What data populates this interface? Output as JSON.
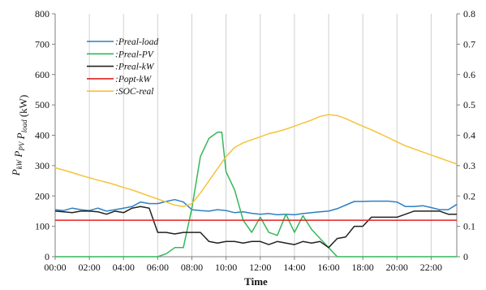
{
  "chart_data": {
    "type": "line",
    "xlabel": "Time",
    "ylabel_parts": [
      {
        "main": "P",
        "sub": "kW"
      },
      {
        "main": "P",
        "sub": "PV"
      },
      {
        "main": "P",
        "sub": "load"
      }
    ],
    "ylabel_unit": "(kW)",
    "ylim": [
      0,
      800
    ],
    "yticks": [
      0,
      100,
      200,
      300,
      400,
      500,
      600,
      700,
      800
    ],
    "y2lim": [
      0,
      0.8
    ],
    "y2ticks": [
      "0",
      "0.1",
      "0.2",
      "0.3",
      "0.4",
      "0.5",
      "0.6",
      "0.7",
      "0.8"
    ],
    "xlim": [
      0,
      23.5
    ],
    "xticks": [
      {
        "x": 0,
        "label": "00:00"
      },
      {
        "x": 2,
        "label": "02:00"
      },
      {
        "x": 4,
        "label": "04:00"
      },
      {
        "x": 6,
        "label": "06:00"
      },
      {
        "x": 8,
        "label": "08:00"
      },
      {
        "x": 10,
        "label": "10:00"
      },
      {
        "x": 12,
        "label": "12:00"
      },
      {
        "x": 14,
        "label": "14:00"
      },
      {
        "x": 16,
        "label": "16:00"
      },
      {
        "x": 18,
        "label": "18:00"
      },
      {
        "x": 20,
        "label": "20:00"
      },
      {
        "x": 22,
        "label": "22:00"
      }
    ],
    "grid": "vertical",
    "legend_position": "top-left",
    "series": [
      {
        "name": ":Preal-load",
        "color": "#2e7fc2",
        "axis": "left",
        "x": [
          0,
          0.5,
          1,
          1.5,
          2,
          2.5,
          3,
          3.5,
          4,
          4.5,
          5,
          5.5,
          6,
          6.5,
          7,
          7.5,
          8,
          8.5,
          9,
          9.5,
          10,
          10.5,
          11,
          11.5,
          12,
          12.5,
          13,
          13.5,
          14,
          14.5,
          15,
          15.5,
          16,
          16.5,
          17,
          17.5,
          18,
          18.5,
          19,
          19.5,
          20,
          20.5,
          21,
          21.5,
          22,
          22.5,
          23,
          23.5
        ],
        "y": [
          155,
          152,
          160,
          155,
          152,
          160,
          150,
          155,
          160,
          165,
          180,
          175,
          175,
          182,
          188,
          180,
          155,
          152,
          150,
          155,
          152,
          145,
          148,
          143,
          140,
          142,
          138,
          140,
          138,
          142,
          145,
          148,
          150,
          158,
          170,
          182,
          182,
          183,
          183,
          183,
          180,
          165,
          165,
          168,
          162,
          155,
          155,
          172
        ]
      },
      {
        "name": ":Preal-PV",
        "color": "#35b75a",
        "axis": "left",
        "x": [
          0,
          0.5,
          1,
          1.5,
          2,
          2.5,
          3,
          3.5,
          4,
          4.5,
          5,
          5.5,
          6,
          6.5,
          7,
          7.5,
          8,
          8.5,
          9,
          9.5,
          9.75,
          10,
          10.5,
          11,
          11.5,
          12,
          12.5,
          13,
          13.5,
          14,
          14.5,
          15,
          15.5,
          16,
          16.5,
          17,
          17.5,
          18,
          18.5,
          19,
          19.5,
          20,
          20.5,
          21,
          21.5,
          22,
          22.5,
          23,
          23.5
        ],
        "y": [
          0,
          0,
          0,
          0,
          0,
          0,
          0,
          0,
          0,
          0,
          0,
          0,
          0,
          10,
          30,
          30,
          160,
          330,
          390,
          410,
          410,
          280,
          220,
          120,
          80,
          130,
          80,
          70,
          140,
          80,
          135,
          90,
          60,
          30,
          0,
          0,
          0,
          0,
          0,
          0,
          0,
          0,
          0,
          0,
          0,
          0,
          0,
          0,
          0
        ]
      },
      {
        "name": ":Preal-kW",
        "color": "#222222",
        "axis": "left",
        "x": [
          0,
          0.5,
          1,
          1.5,
          2,
          2.5,
          3,
          3.5,
          4,
          4.5,
          5,
          5.5,
          6,
          6.5,
          7,
          7.5,
          8,
          8.5,
          9,
          9.5,
          10,
          10.5,
          11,
          11.5,
          12,
          12.5,
          13,
          13.5,
          14,
          14.5,
          15,
          15.5,
          16,
          16.5,
          17,
          17.5,
          18,
          18.5,
          19,
          19.5,
          20,
          20.5,
          21,
          21.5,
          22,
          22.5,
          23,
          23.5
        ],
        "y": [
          150,
          148,
          145,
          150,
          150,
          148,
          140,
          150,
          145,
          160,
          165,
          160,
          80,
          80,
          75,
          80,
          80,
          80,
          50,
          45,
          50,
          50,
          45,
          50,
          50,
          40,
          50,
          45,
          40,
          50,
          45,
          50,
          30,
          60,
          65,
          100,
          100,
          130,
          130,
          130,
          130,
          140,
          150,
          150,
          150,
          150,
          140,
          140
        ]
      },
      {
        "name": ":Popt-kW",
        "color": "#e02020",
        "axis": "left",
        "x": [
          0,
          23.5
        ],
        "y": [
          120,
          120
        ]
      },
      {
        "name": ":SOC-real",
        "color": "#f5c23a",
        "axis": "right",
        "x": [
          0,
          0.5,
          1,
          1.5,
          2,
          2.5,
          3,
          3.5,
          4,
          4.5,
          5,
          5.5,
          6,
          6.5,
          7,
          7.5,
          8,
          8.5,
          9,
          9.5,
          10,
          10.5,
          11,
          11.5,
          12,
          12.5,
          13,
          13.5,
          14,
          14.5,
          15,
          15.5,
          16,
          16.5,
          17,
          17.5,
          18,
          18.5,
          19,
          19.5,
          20,
          20.5,
          21,
          21.5,
          22,
          22.5,
          23,
          23.5
        ],
        "y": [
          0.293,
          0.285,
          0.277,
          0.268,
          0.26,
          0.252,
          0.245,
          0.237,
          0.228,
          0.22,
          0.21,
          0.2,
          0.19,
          0.18,
          0.17,
          0.165,
          0.175,
          0.21,
          0.25,
          0.29,
          0.33,
          0.36,
          0.375,
          0.385,
          0.395,
          0.405,
          0.412,
          0.42,
          0.43,
          0.44,
          0.45,
          0.462,
          0.468,
          0.465,
          0.455,
          0.442,
          0.43,
          0.418,
          0.405,
          0.392,
          0.378,
          0.365,
          0.355,
          0.345,
          0.335,
          0.325,
          0.315,
          0.305
        ]
      }
    ]
  }
}
